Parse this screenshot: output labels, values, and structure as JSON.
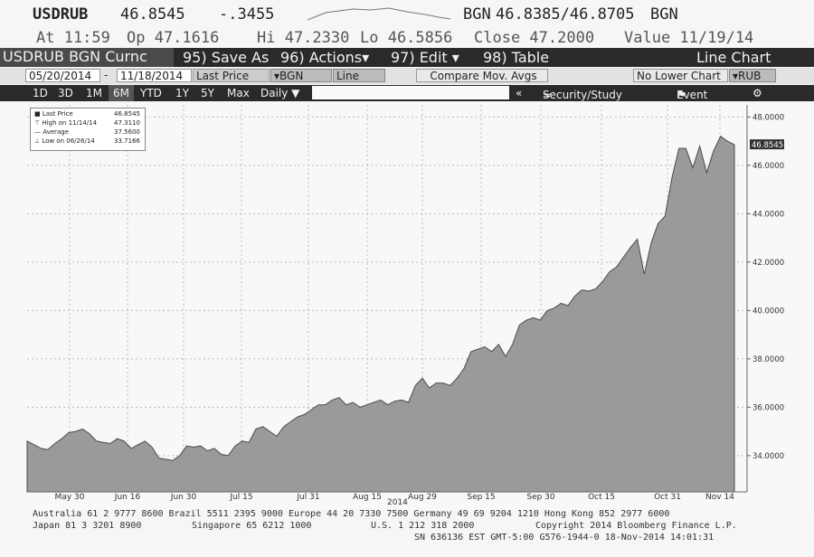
{
  "header": {
    "ticker": "USDRUB",
    "last": "46.8545",
    "change": "-.3455",
    "source": "BGN",
    "bid_ask": "46.8385/46.8705",
    "source2": "BGN",
    "time": "At 11:59",
    "open": "Op 47.1616",
    "high": "Hi 47.2330",
    "low": "Lo 46.5856",
    "close": "Close 47.2000",
    "value": "Value 11/19/14"
  },
  "toolbar": {
    "security": "USDRUB BGN Curnc",
    "save_as": "95) Save As",
    "actions": "96) Actions▾",
    "edit": "97) Edit  ▾",
    "table": "98) Table",
    "chart_type": "Line Chart"
  },
  "controls": {
    "start_date": "05/20/2014",
    "end_date": "11/18/2014",
    "dash": "-",
    "field": "Last Price",
    "source": "BGN",
    "style": "Line",
    "compare": "Compare Mov. Avgs",
    "lower": "No Lower Chart",
    "currency": "RUB"
  },
  "ranges": {
    "items": [
      "1D",
      "3D",
      "1M",
      "6M",
      "YTD",
      "1Y",
      "5Y",
      "Max"
    ],
    "selected": "6M",
    "period": "Daily ▼",
    "collapse": "«",
    "security_study": "Security/Study",
    "event": "Event",
    "settings": "⚙"
  },
  "legend": {
    "rows": [
      {
        "label": "Last Price",
        "value": "46.8545"
      },
      {
        "label": "High on 11/14/14",
        "value": "47.3110"
      },
      {
        "label": "Average",
        "value": "37.5600"
      },
      {
        "label": "Low on 06/26/14",
        "value": "33.7166"
      }
    ]
  },
  "chart_data": {
    "type": "area",
    "ylim": [
      32.5,
      48.5
    ],
    "yticks": [
      "48.0000",
      "46.0000",
      "44.0000",
      "42.0000",
      "40.0000",
      "38.0000",
      "36.0000",
      "34.0000"
    ],
    "ytick_values": [
      48,
      46,
      44,
      42,
      40,
      38,
      36,
      34
    ],
    "xticks": [
      "May 30",
      "Jun 16",
      "Jun 30",
      "Jul 15",
      "Jul 31",
      "Aug 15",
      "Aug 29",
      "Sep 15",
      "Sep 30",
      "Oct 15",
      "Oct 31",
      "Nov 14"
    ],
    "xlabel": "2014",
    "last_label": "46.8545",
    "grid": true,
    "series": [
      {
        "values": [
          34.6,
          34.45,
          34.3,
          34.25,
          34.5,
          34.7,
          34.95,
          35.0,
          35.1,
          34.9,
          34.6,
          34.55,
          34.5,
          34.7,
          34.6,
          34.3,
          34.45,
          34.6,
          34.35,
          33.9,
          33.85,
          33.8,
          34.0,
          34.4,
          34.35,
          34.4,
          34.2,
          34.3,
          34.05,
          34.0,
          34.4,
          34.6,
          34.55,
          35.1,
          35.2,
          35.0,
          34.8,
          35.2,
          35.4,
          35.6,
          35.7,
          35.9,
          36.1,
          36.1,
          36.3,
          36.4,
          36.1,
          36.2,
          36.0,
          36.1,
          36.2,
          36.3,
          36.1,
          36.25,
          36.3,
          36.2,
          36.9,
          37.2,
          36.8,
          37.0,
          37.0,
          36.9,
          37.2,
          37.6,
          38.3,
          38.4,
          38.5,
          38.3,
          38.6,
          38.1,
          38.6,
          39.4,
          39.6,
          39.7,
          39.6,
          40.0,
          40.1,
          40.3,
          40.2,
          40.6,
          40.85,
          40.8,
          40.9,
          41.2,
          41.6,
          41.8,
          42.2,
          42.6,
          42.95,
          41.5,
          42.8,
          43.6,
          43.9,
          45.5,
          46.7,
          46.7,
          45.9,
          46.8,
          45.7,
          46.6,
          47.2,
          47.0,
          46.85
        ]
      }
    ]
  },
  "footer": {
    "line1": "Australia 61 2 9777 8600 Brazil 5511 2395 9000 Europe 44 20 7330 7500 Germany 49 69 9204 1210 Hong Kong 852 2977 6000",
    "line2a": "Japan 81 3 3201 8900",
    "line2b": "Singapore 65 6212 1000",
    "line2c": "U.S. 1 212 318 2000",
    "line2d": "Copyright 2014 Bloomberg Finance L.P.",
    "line3": "SN 636136 EST  GMT-5:00 G576-1944-0 18-Nov-2014 14:01:31"
  }
}
